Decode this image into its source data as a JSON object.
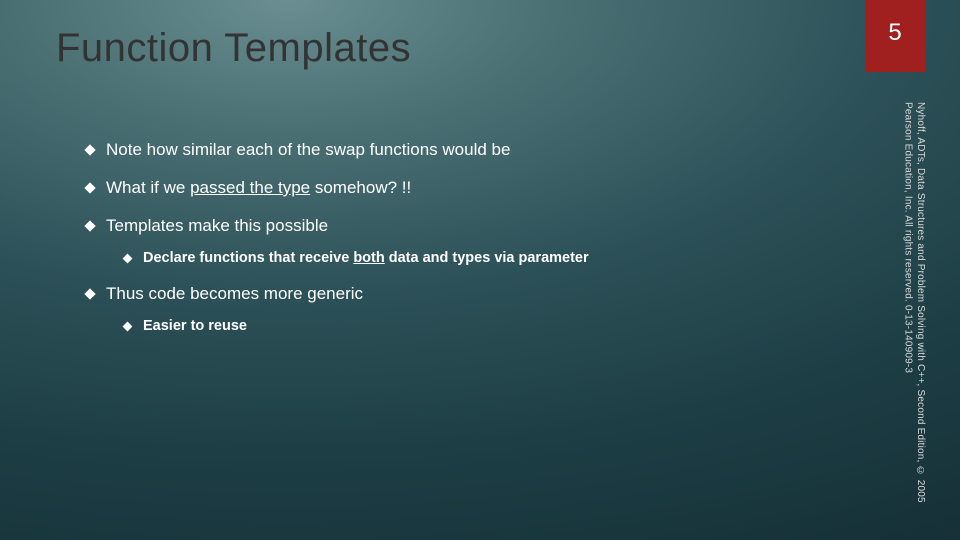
{
  "slide": {
    "title": "Function Templates",
    "page_number": "5",
    "copyright": "Nyhoff, ADTs, Data Structures and Problem Solving with C++, Second Edition, © 2005 Pearson Education, Inc. All rights reserved. 0-13-140909-3",
    "bullets": {
      "b1": "Note how similar each of the swap functions would be",
      "b2_pre": "What if we ",
      "b2_u": "passed the type",
      "b2_post": " somehow? !!",
      "b3": "Templates make this possible",
      "b3a_pre": "Declare functions that receive ",
      "b3a_u": "both",
      "b3a_post": " data and types via parameter",
      "b4": "Thus code becomes more generic",
      "b4a": "Easier to reuse"
    }
  }
}
